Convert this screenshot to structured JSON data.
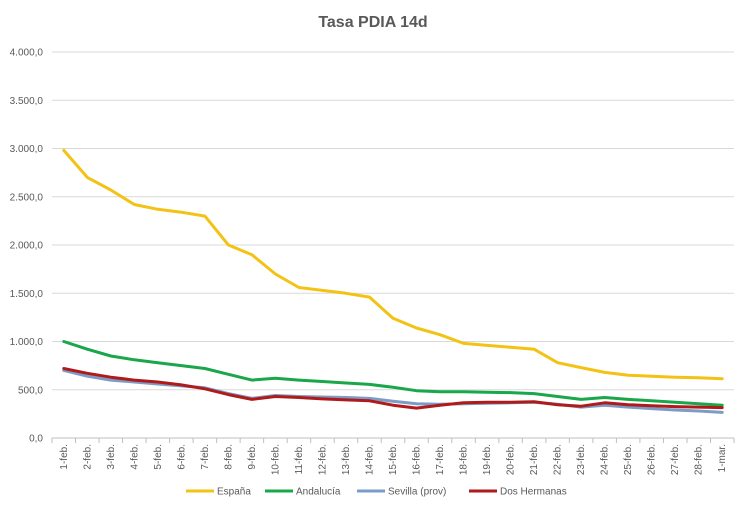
{
  "chart_data": {
    "type": "line",
    "title": "Tasa PDIA 14d",
    "xlabel": "",
    "ylabel": "",
    "ylim": [
      0,
      4000
    ],
    "y_ticks": [
      "0,0",
      "500,0",
      "1.000,0",
      "1.500,0",
      "2.000,0",
      "2.500,0",
      "3.000,0",
      "3.500,0",
      "4.000,0"
    ],
    "y_tick_values": [
      0,
      500,
      1000,
      1500,
      2000,
      2500,
      3000,
      3500,
      4000
    ],
    "categories": [
      "1-feb.",
      "2-feb.",
      "3-feb.",
      "4-feb.",
      "5-feb.",
      "6-feb.",
      "7-feb.",
      "8-feb.",
      "9-feb.",
      "10-feb.",
      "11-feb.",
      "12-feb.",
      "13-feb.",
      "14-feb.",
      "15-feb.",
      "16-feb.",
      "17-feb.",
      "18-feb.",
      "19-feb.",
      "20-feb.",
      "21-feb.",
      "22-feb.",
      "23-feb.",
      "24-feb.",
      "25-feb.",
      "26-feb.",
      "27-feb.",
      "28-feb.",
      "1-mar."
    ],
    "grid": true,
    "legend_position": "bottom",
    "series": [
      {
        "name": "España",
        "color": "#f2c314",
        "values": [
          2980,
          2700,
          2570,
          2420,
          2370,
          2340,
          2300,
          2000,
          1900,
          1700,
          1560,
          1530,
          1500,
          1460,
          1240,
          1140,
          1070,
          980,
          960,
          940,
          920,
          780,
          730,
          680,
          650,
          640,
          630,
          625,
          615
        ]
      },
      {
        "name": "Andalucía",
        "color": "#1aa64a",
        "values": [
          1000,
          920,
          850,
          810,
          780,
          750,
          720,
          660,
          600,
          620,
          600,
          585,
          570,
          555,
          525,
          490,
          480,
          480,
          475,
          470,
          460,
          430,
          400,
          420,
          400,
          385,
          370,
          355,
          340
        ]
      },
      {
        "name": "Sevilla (prov)",
        "color": "#7a9cc6",
        "values": [
          700,
          640,
          600,
          580,
          560,
          540,
          520,
          460,
          410,
          440,
          430,
          425,
          420,
          410,
          380,
          355,
          350,
          355,
          360,
          365,
          370,
          350,
          320,
          340,
          320,
          305,
          290,
          280,
          265
        ]
      },
      {
        "name": "Dos Hermanas",
        "color": "#b01a1a",
        "values": [
          720,
          670,
          630,
          600,
          580,
          550,
          510,
          450,
          400,
          430,
          420,
          405,
          395,
          385,
          340,
          310,
          340,
          365,
          370,
          370,
          375,
          345,
          330,
          365,
          345,
          335,
          325,
          320,
          315
        ]
      }
    ]
  }
}
